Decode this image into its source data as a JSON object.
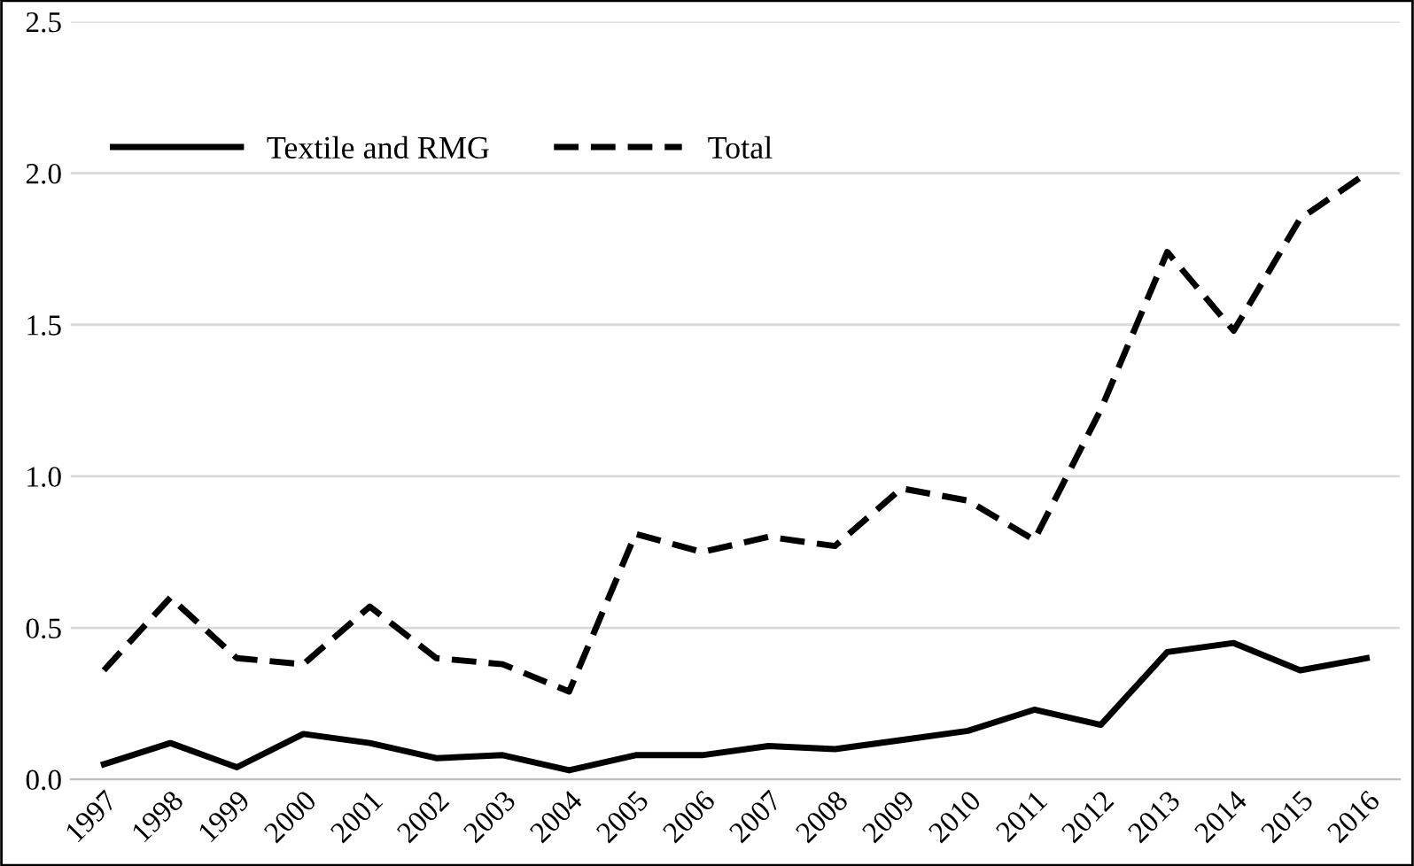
{
  "chart_data": {
    "type": "line",
    "categories": [
      "1997",
      "1998",
      "1999",
      "2000",
      "2001",
      "2002",
      "2003",
      "2004",
      "2005",
      "2006",
      "2007",
      "2008",
      "2009",
      "2010",
      "2011",
      "2012",
      "2013",
      "2014",
      "2015",
      "2016"
    ],
    "series": [
      {
        "name": "Textile and RMG",
        "color": "#000000",
        "line_style": "solid",
        "values": [
          0.05,
          0.12,
          0.04,
          0.15,
          0.12,
          0.07,
          0.08,
          0.03,
          0.08,
          0.08,
          0.11,
          0.1,
          0.13,
          0.16,
          0.23,
          0.18,
          0.42,
          0.45,
          0.36,
          0.4
        ]
      },
      {
        "name": "Total",
        "color": "#000000",
        "line_style": "dashed",
        "values": [
          0.36,
          0.6,
          0.4,
          0.38,
          0.57,
          0.4,
          0.38,
          0.29,
          0.81,
          0.75,
          0.8,
          0.77,
          0.96,
          0.92,
          0.79,
          1.22,
          1.74,
          1.48,
          1.85,
          2.0
        ]
      }
    ],
    "ylim": [
      0,
      2.5
    ],
    "yticks": [
      {
        "value": 0,
        "label": "0.0"
      },
      {
        "value": 0.5,
        "label": "0.5"
      },
      {
        "value": 1.0,
        "label": "1.0"
      },
      {
        "value": 1.5,
        "label": "1.5"
      },
      {
        "value": 2.0,
        "label": "2.0"
      },
      {
        "value": 2.5,
        "label": "2.5"
      }
    ],
    "grid": "y",
    "legend": "top left",
    "marker": "none"
  }
}
